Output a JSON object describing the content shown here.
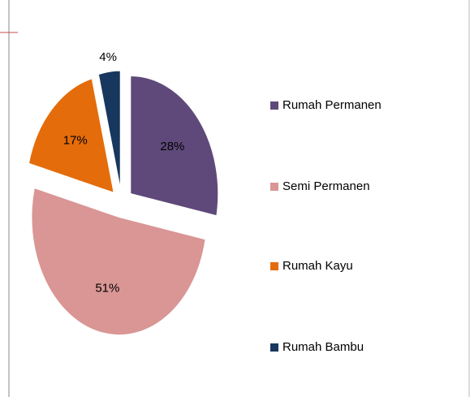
{
  "chart_data": {
    "type": "pie",
    "categories": [
      "Rumah Permanen",
      "Semi Permanen",
      "Rumah Kayu",
      "Rumah Bambu"
    ],
    "values": [
      28,
      51,
      17,
      4
    ],
    "value_labels": [
      "28%",
      "51%",
      "17%",
      "4%"
    ],
    "colors": [
      "#5f497a",
      "#d99694",
      "#e46c0a",
      "#17375e"
    ],
    "legend": "right"
  }
}
